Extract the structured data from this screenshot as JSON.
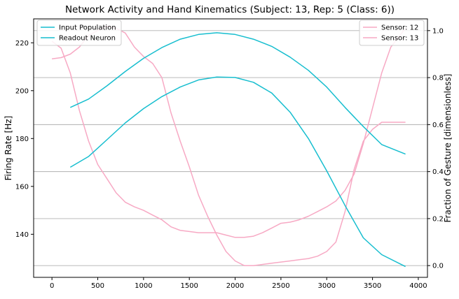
{
  "chart_data": {
    "type": "line",
    "title": "Network Activity and Hand Kinematics (Subject: 13, Rep: 5 (Class: 6))",
    "xlabel": "",
    "ylabel_left": "Firing Rate [Hz]",
    "ylabel_right": "Fraction of Gesture [dimensionless]",
    "xlim": [
      -200,
      4100
    ],
    "ylim_left": [
      122,
      230
    ],
    "ylim_right": [
      -0.05,
      1.05
    ],
    "x_ticks": [
      0,
      500,
      1000,
      1500,
      2000,
      2500,
      3000,
      3500,
      4000
    ],
    "y_left_ticks": [
      140,
      160,
      180,
      200,
      220
    ],
    "y_right_ticks": [
      0.0,
      0.2,
      0.4,
      0.6,
      0.8,
      1.0
    ],
    "y_right_tick_labels": [
      "0.0",
      "0.2",
      "0.4",
      "0.6",
      "0.8",
      "1.0"
    ],
    "grid": "horizontal lines at right-axis ticks",
    "legend_left": {
      "placement": "top-left",
      "entries": [
        "Input Population",
        "Readout Neuron"
      ]
    },
    "legend_right": {
      "placement": "top-right",
      "entries": [
        "Sensor: 12",
        "Sensor: 13"
      ]
    },
    "colors": {
      "cyan": "#17becf",
      "pink": "#f7a9c4",
      "grid": "#b0b0b0"
    },
    "series_left": [
      {
        "name": "Input Population",
        "x": [
          200,
          400,
          600,
          800,
          1000,
          1200,
          1400,
          1600,
          1800,
          2000,
          2200,
          2400,
          2600,
          2800,
          3000,
          3200,
          3400,
          3600,
          3860
        ],
        "y": [
          193,
          196.5,
          202,
          208,
          213.5,
          218,
          221.5,
          223.5,
          224.2,
          223.5,
          221.5,
          218.5,
          214,
          208.5,
          201.5,
          193,
          185,
          177.5,
          173.5
        ]
      },
      {
        "name": "Readout Neuron",
        "x": [
          200,
          400,
          600,
          800,
          1000,
          1200,
          1400,
          1600,
          1800,
          2000,
          2200,
          2400,
          2600,
          2800,
          3000,
          3200,
          3400,
          3600,
          3860
        ],
        "y": [
          168,
          172.5,
          179.5,
          186.5,
          192.5,
          197.5,
          201.5,
          204.5,
          205.7,
          205.5,
          203.5,
          199,
          191,
          180,
          166.5,
          152,
          138.5,
          131.5,
          126.5
        ]
      }
    ],
    "series_right": [
      {
        "name": "Sensor: 12",
        "x": [
          0,
          100,
          200,
          300,
          400,
          500,
          600,
          700,
          800,
          900,
          1000,
          1100,
          1200,
          1300,
          1400,
          1500,
          1600,
          1700,
          1800,
          1900,
          2000,
          2100,
          2200,
          2300,
          2400,
          2500,
          2600,
          2700,
          2800,
          2900,
          3000,
          3100,
          3200,
          3300,
          3400,
          3500,
          3600,
          3700,
          3860
        ],
        "y": [
          0.955,
          0.925,
          0.82,
          0.66,
          0.53,
          0.43,
          0.37,
          0.31,
          0.27,
          0.25,
          0.235,
          0.215,
          0.195,
          0.165,
          0.15,
          0.145,
          0.14,
          0.14,
          0.14,
          0.13,
          0.12,
          0.12,
          0.125,
          0.14,
          0.16,
          0.18,
          0.185,
          0.195,
          0.21,
          0.23,
          0.25,
          0.275,
          0.32,
          0.39,
          0.52,
          0.67,
          0.82,
          0.93,
          1.01
        ]
      },
      {
        "name": "Sensor: 13",
        "x": [
          0,
          100,
          200,
          300,
          400,
          500,
          600,
          700,
          800,
          900,
          1000,
          1100,
          1200,
          1300,
          1400,
          1500,
          1600,
          1700,
          1800,
          1900,
          2000,
          2100,
          2200,
          2300,
          2400,
          2500,
          2600,
          2700,
          2800,
          2900,
          3000,
          3100,
          3200,
          3300,
          3400,
          3500,
          3600,
          3700,
          3860
        ],
        "y": [
          0.88,
          0.885,
          0.9,
          0.93,
          0.98,
          1.0,
          1.02,
          1.01,
          0.99,
          0.93,
          0.89,
          0.86,
          0.8,
          0.65,
          0.53,
          0.42,
          0.3,
          0.21,
          0.13,
          0.06,
          0.02,
          0.0,
          0.0,
          0.005,
          0.01,
          0.015,
          0.02,
          0.025,
          0.03,
          0.04,
          0.06,
          0.1,
          0.23,
          0.41,
          0.53,
          0.58,
          0.61,
          0.61,
          0.61
        ]
      }
    ]
  }
}
